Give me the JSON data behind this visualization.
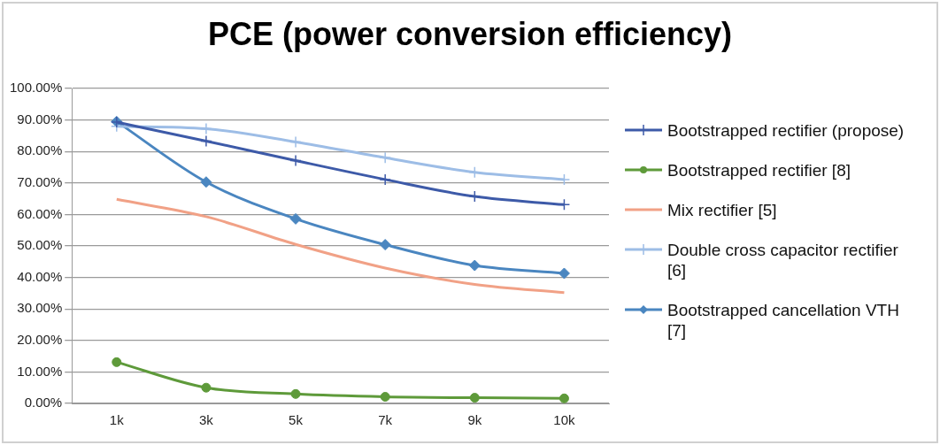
{
  "chart_data": {
    "type": "line",
    "title": "PCE  (power conversion efficiency)",
    "categories": [
      "1k",
      "3k",
      "5k",
      "7k",
      "9k",
      "10k"
    ],
    "series": [
      {
        "name": "Bootstrapped rectifier (propose)",
        "color": "#3d5aa8",
        "marker": "cross",
        "values": [
          89.3,
          83.3,
          77.1,
          71.1,
          65.7,
          63.1
        ]
      },
      {
        "name": "Bootstrapped rectifier [8]",
        "color": "#5e9a3a",
        "marker": "circle",
        "values": [
          13.1,
          5.0,
          3.0,
          2.1,
          1.8,
          1.6
        ]
      },
      {
        "name": "Mix rectifier [5]",
        "color": "#f1a186",
        "marker": "none",
        "values": [
          64.8,
          59.3,
          50.5,
          43.0,
          37.8,
          35.2
        ]
      },
      {
        "name": "Double cross capacitor rectifier [6]",
        "color": "#9dbde6",
        "marker": "cross",
        "values": [
          88.0,
          87.2,
          83.0,
          78.0,
          73.4,
          71.1
        ]
      },
      {
        "name": "Bootstrapped cancellation VTH [7]",
        "color": "#4a86c0",
        "marker": "diamond",
        "values": [
          89.5,
          70.3,
          58.6,
          50.4,
          43.8,
          41.3
        ]
      }
    ],
    "ylim": [
      0,
      100
    ],
    "yticks": [
      {
        "value": 0,
        "label": "0.00%"
      },
      {
        "value": 10,
        "label": "10.00%"
      },
      {
        "value": 20,
        "label": "20.00%"
      },
      {
        "value": 30,
        "label": "30.00%"
      },
      {
        "value": 40,
        "label": "40.00%"
      },
      {
        "value": 50,
        "label": "50.00%"
      },
      {
        "value": 60,
        "label": "60.00%"
      },
      {
        "value": 70,
        "label": "70.00%"
      },
      {
        "value": 80,
        "label": "80.00%"
      },
      {
        "value": 90,
        "label": "90.00%"
      },
      {
        "value": 100,
        "label": "100.00%"
      }
    ],
    "grid": "y",
    "legend": "right",
    "line_style": "solid"
  }
}
